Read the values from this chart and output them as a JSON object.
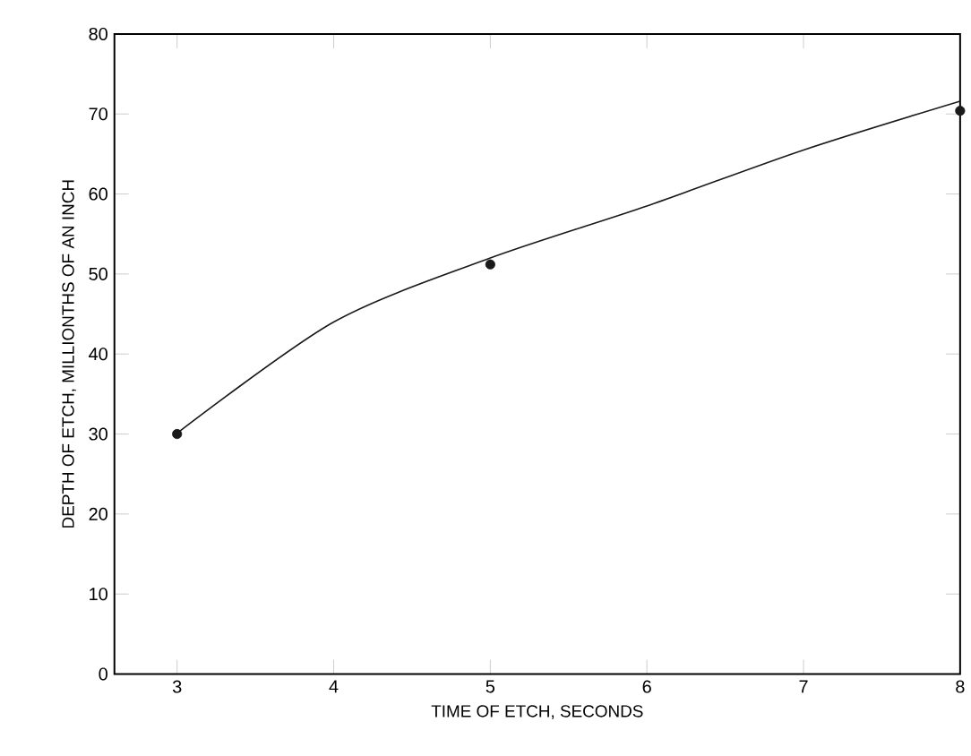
{
  "chart_data": {
    "type": "scatter",
    "xlabel": "TIME OF ETCH, SECONDS",
    "ylabel": "DEPTH OF ETCH, MILLIONTHS OF AN INCH",
    "xlim": [
      2.6,
      8
    ],
    "ylim": [
      0,
      80
    ],
    "xticks": [
      3,
      4,
      5,
      6,
      7,
      8
    ],
    "yticks": [
      0,
      10,
      20,
      30,
      40,
      50,
      60,
      70,
      80
    ],
    "grid": false,
    "series": [
      {
        "color": "#1a1a1a",
        "marker": "circle",
        "x": [
          3,
          5,
          8
        ],
        "values": [
          30,
          51.2,
          70.4
        ]
      },
      {
        "type": "line",
        "color": "#1a1a1a",
        "marker": "none",
        "line_style": "solid",
        "x": [
          3,
          4,
          5,
          6,
          7,
          8
        ],
        "values": [
          30.1,
          44,
          52,
          58.5,
          65.5,
          71.6
        ]
      }
    ]
  }
}
